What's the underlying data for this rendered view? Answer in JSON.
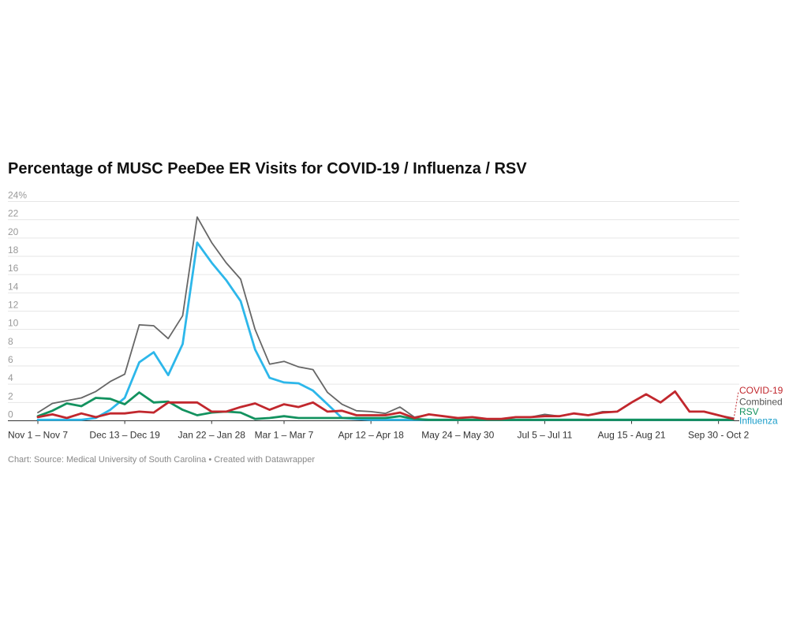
{
  "colors": {
    "covid": "#c1272d",
    "combined": "#666666",
    "rsv": "#13925f",
    "influenza": "#2db7ea",
    "influenza_label": "#1a9ec9",
    "grid": "#e6e6e6",
    "axis_text": "#333333",
    "y_tick_text": "#999999"
  },
  "footer": {
    "text": "Chart: Source: Medical University of South Carolina • Created with Datawrapper"
  },
  "chart_data": {
    "type": "line",
    "title": "Percentage of MUSC PeeDee ER Visits for COVID-19 / Influenza / RSV",
    "xlabel": "",
    "ylabel": "",
    "ylim": [
      0,
      24
    ],
    "y_ticks": [
      0,
      2,
      4,
      6,
      8,
      10,
      12,
      14,
      16,
      18,
      20,
      22,
      24
    ],
    "y_tick_labels": [
      "0",
      "2",
      "4",
      "6",
      "8",
      "10",
      "12",
      "14",
      "16",
      "18",
      "20",
      "22",
      "24%"
    ],
    "grid": true,
    "legend_placement": "inline labels at right end of lines",
    "x_period_count": 49,
    "x_tick_labels": [
      {
        "period": 1,
        "label": "Nov 1 – Nov 7"
      },
      {
        "period": 7,
        "label": "Dec 13 – Dec 19"
      },
      {
        "period": 13,
        "label": "Jan 22 – Jan 28"
      },
      {
        "period": 18,
        "label": "Mar 1 – Mar 7"
      },
      {
        "period": 24,
        "label": "Apr 12 – Apr 18"
      },
      {
        "period": 30,
        "label": "May 24 – May 30"
      },
      {
        "period": 36,
        "label": "Jul 5 – Jul 11"
      },
      {
        "period": 42,
        "label": "Aug 15 - Aug 21"
      },
      {
        "period": 48,
        "label": "Sep 30 - Oct 2"
      }
    ],
    "series": [
      {
        "name": "Combined",
        "key": "combined",
        "values": [
          0.9,
          1.9,
          2.2,
          2.5,
          3.2,
          4.3,
          5.1,
          10.5,
          10.4,
          9.0,
          11.5,
          22.3,
          19.5,
          17.3,
          15.5,
          10.0,
          6.2,
          6.5,
          5.9,
          5.6,
          3.1,
          1.8,
          1.1,
          1.0,
          0.8,
          1.5,
          0.4,
          0.7,
          0.5,
          0.3,
          0.4,
          0.2,
          0.2,
          0.4,
          0.4,
          0.7,
          0.5,
          0.8,
          0.6,
          1.0,
          1.0,
          2.0,
          2.9,
          2.0,
          3.2,
          1.0,
          1.0,
          0.6,
          0.3
        ]
      },
      {
        "name": "COVID-19",
        "key": "covid",
        "values": [
          0.4,
          0.7,
          0.3,
          0.8,
          0.4,
          0.8,
          0.8,
          1.0,
          0.9,
          2.0,
          2.0,
          2.0,
          1.0,
          1.0,
          1.5,
          1.9,
          1.2,
          1.8,
          1.5,
          2.0,
          1.0,
          1.1,
          0.6,
          0.6,
          0.6,
          0.9,
          0.3,
          0.7,
          0.5,
          0.3,
          0.4,
          0.2,
          0.2,
          0.4,
          0.4,
          0.5,
          0.5,
          0.8,
          0.6,
          0.9,
          1.0,
          2.0,
          2.9,
          2.0,
          3.2,
          1.0,
          1.0,
          0.6,
          0.2
        ]
      },
      {
        "name": "RSV",
        "key": "rsv",
        "values": [
          0.5,
          1.1,
          1.9,
          1.6,
          2.5,
          2.4,
          1.8,
          3.1,
          2.0,
          2.1,
          1.2,
          0.6,
          0.9,
          1.0,
          0.9,
          0.2,
          0.3,
          0.5,
          0.3,
          0.3,
          0.3,
          0.3,
          0.3,
          0.3,
          0.3,
          0.5,
          0.2,
          0.1,
          0.1,
          0.1,
          0.1,
          0.1,
          0.1,
          0.1,
          0.1,
          0.1,
          0.1,
          0.1,
          0.1,
          0.1,
          0.1,
          0.1,
          0.1,
          0.1,
          0.1,
          0.1,
          0.1,
          0.1,
          0.1
        ]
      },
      {
        "name": "Influenza",
        "key": "influenza",
        "values": [
          0.1,
          0.1,
          0.1,
          0.1,
          0.3,
          1.2,
          2.5,
          6.4,
          7.5,
          5.0,
          8.4,
          19.5,
          17.3,
          15.4,
          13.1,
          7.8,
          4.7,
          4.2,
          4.1,
          3.3,
          1.8,
          0.3,
          0.2,
          0.1,
          0.1,
          0.1,
          0.1,
          0.1,
          0.1,
          0.1,
          0.1,
          0.1,
          0.1,
          0.1,
          0.1,
          0.1,
          0.1,
          0.1,
          0.1,
          0.1,
          0.1,
          0.1,
          0.1,
          0.1,
          0.1,
          0.1,
          0.1,
          0.1,
          0.1
        ]
      }
    ]
  }
}
